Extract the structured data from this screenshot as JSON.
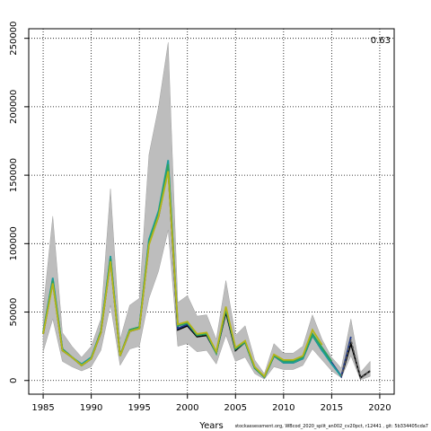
{
  "chart_data": {
    "type": "line",
    "title": "",
    "xlabel": "Years",
    "ylabel": "",
    "xlim": [
      1983.5,
      2021.5
    ],
    "ylim": [
      -10000,
      257000
    ],
    "x_ticks": [
      1985,
      1990,
      1995,
      2000,
      2005,
      2010,
      2015,
      2020
    ],
    "y_ticks": [
      0,
      50000,
      100000,
      150000,
      200000,
      250000
    ],
    "grid": true,
    "annotation": "0.63",
    "footer": "stockassessment.org, WBcod_2020_split_an002_cv20pct, r12441 , git: 5b334405cda7",
    "band": {
      "x": [
        1985,
        1986,
        1987,
        1988,
        1989,
        1990,
        1991,
        1992,
        1993,
        1994,
        1995,
        1996,
        1997,
        1998,
        1999,
        2000,
        2001,
        2002,
        2003,
        2004,
        2005,
        2006,
        2007,
        2008,
        2009,
        2010,
        2011,
        2012,
        2013,
        2014,
        2015,
        2016,
        2017,
        2018,
        2019
      ],
      "upper": [
        52000,
        120000,
        35000,
        25000,
        17000,
        25000,
        45000,
        140000,
        30000,
        55000,
        60000,
        165000,
        200000,
        247000,
        57000,
        62000,
        47000,
        48000,
        30000,
        73000,
        33000,
        40000,
        15000,
        5000,
        27000,
        20000,
        20000,
        25000,
        48000,
        30000,
        17000,
        9000,
        45000,
        6000,
        14000
      ],
      "lower": [
        21000,
        45000,
        14000,
        10000,
        7000,
        10000,
        22000,
        55000,
        11000,
        23000,
        25000,
        60000,
        80000,
        110000,
        25000,
        27000,
        21000,
        22000,
        12000,
        33000,
        14000,
        17000,
        5000,
        1000,
        10000,
        8000,
        8000,
        11000,
        23000,
        15000,
        7000,
        2000,
        18000,
        500,
        3000
      ]
    },
    "series": [
      {
        "color": "#000000",
        "x": [
          1985,
          1986,
          1987,
          1988,
          1989,
          1990,
          1991,
          1992,
          1993,
          1994,
          1995,
          1996,
          1997,
          1998,
          1999,
          2000,
          2001,
          2002,
          2003,
          2004,
          2005,
          2006,
          2007,
          2008,
          2009,
          2010,
          2011,
          2012,
          2013,
          2014,
          2015,
          2016,
          2017,
          2018,
          2019
        ],
        "values": [
          34000,
          72000,
          22000,
          17000,
          11000,
          16000,
          35000,
          88000,
          18000,
          36000,
          38000,
          100000,
          120000,
          155000,
          37000,
          40000,
          32000,
          33000,
          20000,
          50000,
          22000,
          28000,
          9000,
          2500,
          18000,
          13000,
          13000,
          16000,
          33000,
          22000,
          13000,
          3000,
          27000,
          2000,
          7000
        ]
      },
      {
        "color": "#1f3a8f",
        "x": [
          1985,
          1986,
          1987,
          1988,
          1989,
          1990,
          1991,
          1992,
          1993,
          1994,
          1995,
          1996,
          1997,
          1998,
          1999,
          2000,
          2001,
          2002,
          2003,
          2004,
          2005,
          2006,
          2007,
          2008,
          2009,
          2010,
          2011,
          2012,
          2013,
          2014,
          2015,
          2016,
          2017
        ],
        "values": [
          35000,
          74000,
          23000,
          17000,
          11000,
          16000,
          36000,
          90000,
          18000,
          37000,
          39000,
          102000,
          122000,
          158000,
          38000,
          41000,
          33000,
          34000,
          20000,
          52000,
          23000,
          28000,
          9000,
          2500,
          18000,
          13000,
          13000,
          16000,
          34000,
          23000,
          13000,
          3000,
          32000
        ]
      },
      {
        "color": "#1b9e9e",
        "x": [
          1985,
          1986,
          1987,
          1988,
          1989,
          1990,
          1991,
          1992,
          1993,
          1994,
          1995,
          1996,
          1997,
          1998,
          1999,
          2000,
          2001,
          2002,
          2003,
          2004,
          2005,
          2006,
          2007,
          2008,
          2009,
          2010,
          2011,
          2012,
          2013,
          2014,
          2015,
          2016
        ],
        "values": [
          35000,
          75000,
          23000,
          17000,
          12000,
          17000,
          36000,
          91000,
          18000,
          37000,
          39000,
          103000,
          124000,
          161000,
          40000,
          42000,
          33000,
          34000,
          20000,
          53000,
          23000,
          28000,
          9000,
          2500,
          18000,
          13000,
          13000,
          16000,
          33000,
          22000,
          12000,
          3000
        ]
      },
      {
        "color": "#2ca25f",
        "x": [
          1985,
          1986,
          1987,
          1988,
          1989,
          1990,
          1991,
          1992,
          1993,
          1994,
          1995,
          1996,
          1997,
          1998,
          1999,
          2000,
          2001,
          2002,
          2003,
          2004,
          2005,
          2006,
          2007,
          2008,
          2009,
          2010,
          2011,
          2012,
          2013,
          2014,
          2015
        ],
        "values": [
          35000,
          73000,
          23000,
          17000,
          11000,
          16000,
          36000,
          89000,
          18000,
          37000,
          39000,
          101000,
          122000,
          158000,
          40000,
          42000,
          33000,
          34000,
          20000,
          52000,
          23000,
          28000,
          9000,
          2500,
          18000,
          14000,
          14000,
          17000,
          34000,
          24000,
          14000
        ]
      },
      {
        "color": "#b5b518",
        "x": [
          1985,
          1986,
          1987,
          1988,
          1989,
          1990,
          1991,
          1992,
          1993,
          1994,
          1995,
          1996,
          1997,
          1998,
          1999,
          2000,
          2001,
          2002,
          2003,
          2004,
          2005,
          2006,
          2007,
          2008,
          2009,
          2010,
          2011,
          2012,
          2013,
          2014
        ],
        "values": [
          34000,
          71000,
          22000,
          17000,
          11000,
          16000,
          35000,
          87000,
          18000,
          36000,
          38000,
          99000,
          120000,
          153000,
          41000,
          43000,
          34000,
          35000,
          21000,
          54000,
          24000,
          29000,
          10000,
          3000,
          19000,
          15000,
          15000,
          18000,
          37000,
          26000
        ]
      },
      {
        "color": "#5a5a5a",
        "x": [
          2016,
          2017,
          2018,
          2019
        ],
        "values": [
          3000,
          30000,
          1500,
          7000
        ],
        "dashed": true
      }
    ]
  }
}
